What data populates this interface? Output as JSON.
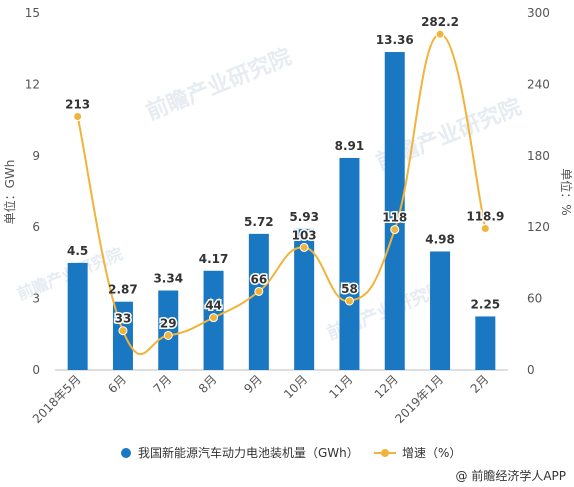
{
  "chart_data": {
    "type": "bar+line",
    "categories": [
      "2018年5月",
      "6月",
      "7月",
      "8月",
      "9月",
      "10月",
      "11月",
      "12月",
      "2019年1月",
      "2月"
    ],
    "series": [
      {
        "name": "我国新能源汽车动力电池装机量（GWh）",
        "type": "bar",
        "axis": "left",
        "values": [
          4.5,
          2.87,
          3.34,
          4.17,
          5.72,
          5.93,
          8.91,
          13.36,
          4.98,
          2.25
        ],
        "labels": [
          "4.5",
          "2.87",
          "3.34",
          "4.17",
          "5.72",
          "5.93",
          "8.91",
          "13.36",
          "4.98",
          "2.25"
        ]
      },
      {
        "name": "增速（%）",
        "type": "line",
        "axis": "right",
        "smooth": true,
        "values": [
          213,
          33,
          29,
          44,
          66,
          103,
          58,
          118,
          282.2,
          118.9
        ],
        "labels": [
          "213",
          "33",
          "29",
          "44",
          "66",
          "103",
          "58",
          "118",
          "282.2",
          "118.9"
        ]
      }
    ],
    "ylabel_left": "单位：GWh",
    "ylabel_right": "单位：%",
    "ylim_left": [
      0,
      15
    ],
    "yticks_left": [
      "0",
      "3",
      "6",
      "9",
      "12",
      "15"
    ],
    "ylim_right": [
      0,
      300
    ],
    "yticks_right": [
      "0",
      "60",
      "120",
      "180",
      "240",
      "300"
    ],
    "legend_position": "bottom",
    "grid": false,
    "colors": {
      "bar": "#1a78c2",
      "line": "#f0b43c",
      "marker": "#f0b43c"
    }
  },
  "watermark": {
    "credit": "@ 前瞻经济学人APP",
    "background_text": "前瞻产业研究院"
  }
}
